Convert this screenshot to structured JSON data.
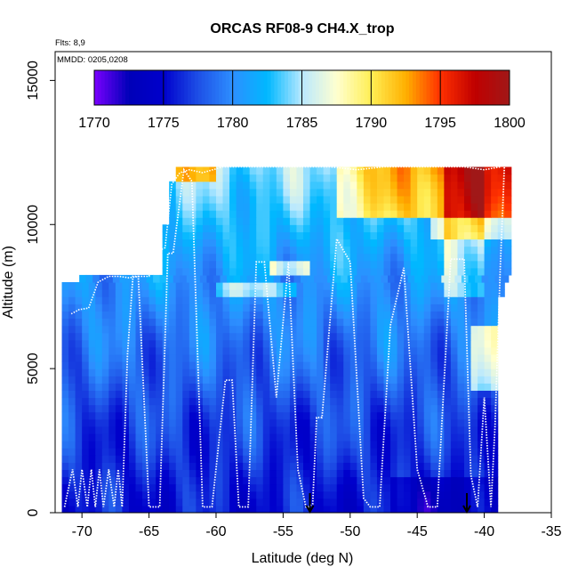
{
  "chart_data": {
    "type": "heatmap",
    "title": "ORCAS RF08-9 CH4.X_trop",
    "annotations": [
      "Flts: 8,9",
      "MMDD: 0205,0208"
    ],
    "xlabel": "Latitude (deg N)",
    "ylabel": "Altitude (m)",
    "xlim": [
      -72,
      -35
    ],
    "ylim": [
      0,
      16000
    ],
    "x_ticks": [
      -70,
      -65,
      -60,
      -55,
      -50,
      -45,
      -40,
      -35
    ],
    "y_ticks": [
      0,
      5000,
      10000,
      15000
    ],
    "colorbar": {
      "min": 1770,
      "max": 1800,
      "ticks": [
        1770,
        1775,
        1780,
        1785,
        1790,
        1795,
        1800
      ],
      "colors": [
        "#7a00ff",
        "#0000b8",
        "#0000cc",
        "#1e4fe6",
        "#2d8fff",
        "#00b8ff",
        "#b8e8ff",
        "#ffffd0",
        "#ffee55",
        "#ffb000",
        "#ff3000",
        "#c00000",
        "#a01818"
      ]
    },
    "outline_lat": [
      -71.5,
      -71.5,
      -70.2,
      -68.5,
      -68.5,
      -65.0,
      -64.0,
      -64.0,
      -63.5,
      -63.0,
      -62.5,
      -60.0,
      -55.0,
      -48.0,
      -43.0,
      -40.0,
      -38.5,
      -38.0,
      -38.0,
      -39.0,
      -39.2
    ],
    "outline_alt": [
      0,
      7900,
      8200,
      8200,
      8300,
      8300,
      8800,
      10000,
      11500,
      11900,
      12000,
      12000,
      12000,
      12000,
      12000,
      12000,
      12000,
      11800,
      8600,
      7500,
      0
    ],
    "profiles": [
      {
        "name": "",
        "lat": [
          -71.3,
          -70.7,
          -70.3,
          -70.0,
          -69.6,
          -69.3,
          -69.0,
          -68.7,
          -68.4,
          -68.0,
          -67.6,
          -67.3,
          -67.0,
          -66.6,
          -66.2,
          -65.8,
          -65.0,
          -64.2,
          -63.6,
          -63.2,
          -62.4,
          -61.8,
          -61.0,
          -60.3,
          -59.3,
          -58.8,
          -58.3,
          -57.6,
          -57.0,
          -56.4,
          -55.5,
          -54.6,
          -53.9,
          -53.3,
          -53.1,
          -52.8,
          -52.5,
          -52.1,
          -51.0,
          -50.0,
          -49.0,
          -48.5,
          -47.8,
          -47.0,
          -46.0,
          -45.0,
          -44.2,
          -43.5,
          -42.5,
          -41.5,
          -41.0,
          -40.5,
          -40.0,
          -39.5,
          -39.2,
          -38.8,
          -38.5
        ],
        "alt": [
          200,
          1500,
          200,
          1500,
          200,
          1500,
          200,
          1500,
          200,
          1500,
          200,
          1500,
          200,
          5500,
          8200,
          8200,
          200,
          200,
          9000,
          9000,
          11900,
          11500,
          200,
          200,
          4600,
          4600,
          200,
          200,
          8700,
          8700,
          4000,
          8700,
          1500,
          200,
          200,
          300,
          3300,
          3300,
          9500,
          8700,
          500,
          200,
          200,
          6500,
          8500,
          1500,
          200,
          200,
          8800,
          8800,
          1300,
          200,
          4000,
          200,
          3000,
          8600,
          12000
        ]
      }
    ],
    "flight_track_upper": {
      "lat": [
        -70.8,
        -70.2,
        -69.5,
        -68.8,
        -68.0,
        -67.2,
        -66.5,
        -65.7,
        -65.0,
        -64.6,
        -64.2,
        -63.8,
        -63.3,
        -62.7,
        -62.0,
        -61.0,
        -59.5,
        -57.5,
        -55.5,
        -53.5,
        -51.5,
        -49.5,
        -47.5,
        -45.5,
        -43.5,
        -41.5,
        -40.0,
        -38.8
      ],
      "alt": [
        6900,
        7050,
        7100,
        8000,
        8200,
        8200,
        8150,
        8200,
        8200,
        9000,
        9100,
        9200,
        11400,
        11800,
        11900,
        11800,
        12000,
        12000,
        12000,
        12000,
        12000,
        11900,
        12000,
        12000,
        12000,
        12000,
        11900,
        12000
      ]
    },
    "arrows_lat": [
      -53.0,
      -41.3
    ]
  }
}
